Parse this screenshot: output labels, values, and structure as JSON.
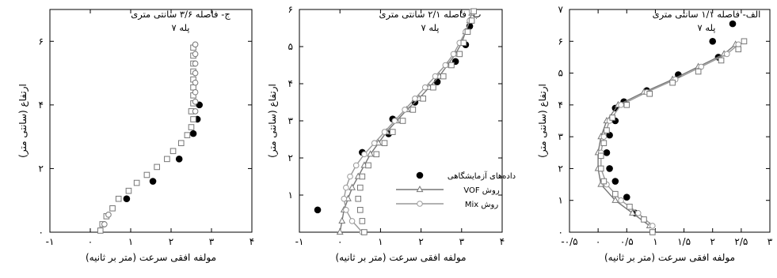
{
  "chart_data": [
    {
      "type": "scatter",
      "title": "ج- فاصله ۳/۶ سانتی متری",
      "subtitle": "پله ۷",
      "xlabel": "مولفه افقی سرعت (متر بر ثانیه)",
      "ylabel": "ارتفاع (سانتی متر)",
      "xlim": [
        -1,
        4
      ],
      "ylim": [
        0,
        7
      ],
      "xticks": [
        -1,
        0,
        1,
        2,
        3,
        4
      ],
      "xtick_labels": [
        "-۱",
        "۰",
        "۱",
        "۲",
        "۳",
        "۴"
      ],
      "yticks": [
        0,
        2,
        4,
        6
      ],
      "ytick_labels": [
        "۰",
        "۲",
        "۴",
        "۶"
      ],
      "series": [
        {
          "marker": "filled-circle",
          "points": [
            [
              0.9,
              1.05
            ],
            [
              1.55,
              1.6
            ],
            [
              2.2,
              2.3
            ],
            [
              2.55,
              3.1
            ],
            [
              2.65,
              3.55
            ],
            [
              2.7,
              4.0
            ]
          ]
        },
        {
          "marker": "open-square",
          "points": [
            [
              0.25,
              0.05
            ],
            [
              0.3,
              0.25
            ],
            [
              0.4,
              0.5
            ],
            [
              0.55,
              0.75
            ],
            [
              0.7,
              1.05
            ],
            [
              0.95,
              1.3
            ],
            [
              1.15,
              1.55
            ],
            [
              1.4,
              1.8
            ],
            [
              1.65,
              2.05
            ],
            [
              1.9,
              2.3
            ],
            [
              2.05,
              2.55
            ],
            [
              2.25,
              2.8
            ],
            [
              2.4,
              3.05
            ],
            [
              2.5,
              3.3
            ],
            [
              2.55,
              3.55
            ],
            [
              2.5,
              3.8
            ],
            [
              2.55,
              4.05
            ],
            [
              2.55,
              4.3
            ],
            [
              2.55,
              4.55
            ],
            [
              2.55,
              4.8
            ],
            [
              2.55,
              5.05
            ],
            [
              2.55,
              5.3
            ],
            [
              2.55,
              5.55
            ],
            [
              2.55,
              5.8
            ]
          ]
        },
        {
          "marker": "open-circle",
          "points": [
            [
              0.35,
              0.25
            ],
            [
              0.45,
              0.55
            ],
            [
              2.6,
              3.8
            ],
            [
              2.6,
              4.1
            ],
            [
              2.6,
              4.4
            ],
            [
              2.6,
              4.7
            ],
            [
              2.6,
              5.0
            ],
            [
              2.6,
              5.3
            ],
            [
              2.6,
              5.6
            ],
            [
              2.6,
              5.9
            ]
          ]
        }
      ]
    },
    {
      "type": "line",
      "title": "ب- فاصله ۲/۱ سانتی متری",
      "subtitle": "پله ۷",
      "xlabel": "مولفه افقی سرعت (متر بر ثانیه)",
      "ylabel": "ارتفاع (سانتی متر)",
      "xlim": [
        -1,
        4
      ],
      "ylim": [
        0,
        6
      ],
      "xticks": [
        -1,
        0,
        1,
        2,
        3,
        4
      ],
      "xtick_labels": [
        "-۱",
        "۰",
        "۱",
        "۲",
        "۳",
        "۴"
      ],
      "yticks": [
        1,
        2,
        3,
        4,
        5,
        6
      ],
      "ytick_labels": [
        "۱",
        "۲",
        "۳",
        "۴",
        "۵",
        "۶"
      ],
      "legend": {
        "position": "lower-right",
        "entries": [
          {
            "label": "داده‌های آزمایشگاهی",
            "marker": "filled-circle"
          },
          {
            "label": "روش VOF",
            "marker": "open-triangle",
            "line": true
          },
          {
            "label": "روش Mix",
            "marker": "open-circle",
            "line": true
          }
        ]
      },
      "series": [
        {
          "marker": "filled-circle",
          "points": [
            [
              -0.55,
              0.6
            ],
            [
              0.55,
              2.15
            ],
            [
              1.2,
              2.65
            ],
            [
              1.3,
              3.05
            ],
            [
              1.85,
              3.5
            ],
            [
              2.4,
              4.05
            ],
            [
              2.85,
              4.6
            ],
            [
              3.1,
              5.05
            ],
            [
              3.2,
              5.55
            ]
          ]
        },
        {
          "marker": "open-triangle",
          "line": true,
          "color": "#777777",
          "points": [
            [
              0.0,
              0.0
            ],
            [
              0.05,
              0.3
            ],
            [
              0.1,
              0.6
            ],
            [
              0.2,
              0.9
            ],
            [
              0.3,
              1.2
            ],
            [
              0.45,
              1.5
            ],
            [
              0.6,
              1.8
            ],
            [
              0.75,
              2.1
            ],
            [
              0.95,
              2.4
            ],
            [
              1.15,
              2.7
            ],
            [
              1.4,
              3.0
            ],
            [
              1.65,
              3.3
            ],
            [
              1.95,
              3.6
            ],
            [
              2.2,
              3.9
            ],
            [
              2.45,
              4.2
            ],
            [
              2.65,
              4.5
            ],
            [
              2.85,
              4.8
            ],
            [
              3.0,
              5.1
            ],
            [
              3.1,
              5.4
            ],
            [
              3.2,
              5.7
            ],
            [
              3.25,
              5.9
            ]
          ]
        },
        {
          "marker": "open-circle",
          "line": true,
          "color": "#999999",
          "points": [
            [
              0.55,
              0.0
            ],
            [
              0.3,
              0.3
            ],
            [
              0.15,
              0.6
            ],
            [
              0.1,
              0.9
            ],
            [
              0.15,
              1.2
            ],
            [
              0.25,
              1.5
            ],
            [
              0.4,
              1.8
            ],
            [
              0.6,
              2.1
            ],
            [
              0.85,
              2.4
            ],
            [
              1.1,
              2.7
            ],
            [
              1.35,
              3.0
            ],
            [
              1.6,
              3.3
            ],
            [
              1.85,
              3.6
            ],
            [
              2.1,
              3.9
            ],
            [
              2.35,
              4.2
            ],
            [
              2.6,
              4.5
            ],
            [
              2.8,
              4.8
            ],
            [
              2.95,
              5.1
            ],
            [
              3.1,
              5.4
            ],
            [
              3.2,
              5.7
            ],
            [
              3.25,
              5.95
            ]
          ]
        },
        {
          "marker": "open-square",
          "points": [
            [
              0.6,
              0.0
            ],
            [
              0.55,
              0.3
            ],
            [
              0.5,
              0.6
            ],
            [
              0.45,
              0.9
            ],
            [
              0.5,
              1.2
            ],
            [
              0.55,
              1.5
            ],
            [
              0.7,
              1.8
            ],
            [
              0.9,
              2.1
            ],
            [
              1.1,
              2.4
            ],
            [
              1.3,
              2.7
            ],
            [
              1.55,
              3.0
            ],
            [
              1.8,
              3.3
            ],
            [
              2.05,
              3.6
            ],
            [
              2.3,
              3.9
            ],
            [
              2.55,
              4.2
            ],
            [
              2.75,
              4.5
            ],
            [
              2.95,
              4.8
            ],
            [
              3.05,
              5.1
            ],
            [
              3.15,
              5.4
            ],
            [
              3.25,
              5.7
            ],
            [
              3.3,
              5.95
            ]
          ]
        }
      ]
    },
    {
      "type": "line",
      "title": "الف- فاصله ۱/۱ سانتی متری",
      "subtitle": "پله ۷",
      "xlabel": "مولفه افقی سرعت (متر بر ثانیه)",
      "ylabel": "ارتفاع (سانتی متر)",
      "xlim": [
        -0.5,
        3
      ],
      "ylim": [
        0,
        7
      ],
      "xticks": [
        -0.5,
        0,
        0.5,
        1,
        1.5,
        2,
        2.5,
        3
      ],
      "xtick_labels": [
        "-۰/۵",
        "۰",
        "۰/۵",
        "۱",
        "۱/۵",
        "۲",
        "۲/۵",
        "۳"
      ],
      "yticks": [
        0,
        1,
        2,
        3,
        4,
        5,
        6,
        7
      ],
      "ytick_labels": [
        "۰",
        "۱",
        "۲",
        "۳",
        "۴",
        "۵",
        "۶",
        "۷"
      ],
      "series": [
        {
          "marker": "filled-circle",
          "points": [
            [
              0.65,
              0.6
            ],
            [
              0.5,
              1.1
            ],
            [
              0.3,
              1.6
            ],
            [
              0.2,
              2.0
            ],
            [
              0.15,
              2.5
            ],
            [
              0.2,
              3.05
            ],
            [
              0.3,
              3.5
            ],
            [
              0.3,
              3.9
            ],
            [
              0.45,
              4.1
            ],
            [
              0.85,
              4.45
            ],
            [
              1.4,
              4.95
            ],
            [
              2.1,
              5.5
            ],
            [
              2.0,
              6.0
            ],
            [
              2.35,
              6.55
            ]
          ]
        },
        {
          "marker": "open-triangle",
          "line": true,
          "color": "#777777",
          "points": [
            [
              0.9,
              0.2
            ],
            [
              0.6,
              0.6
            ],
            [
              0.3,
              1.0
            ],
            [
              0.05,
              1.5
            ],
            [
              0.0,
              2.0
            ],
            [
              0.0,
              2.5
            ],
            [
              0.05,
              3.0
            ],
            [
              0.15,
              3.5
            ],
            [
              0.35,
              4.0
            ],
            [
              0.8,
              4.4
            ],
            [
              1.3,
              4.8
            ],
            [
              1.75,
              5.2
            ],
            [
              2.2,
              5.6
            ],
            [
              2.4,
              5.9
            ]
          ]
        },
        {
          "marker": "open-circle",
          "line": true,
          "color": "#999999",
          "points": [
            [
              0.95,
              0.2
            ],
            [
              0.7,
              0.6
            ],
            [
              0.4,
              1.0
            ],
            [
              0.15,
              1.5
            ],
            [
              0.05,
              2.0
            ],
            [
              0.05,
              2.5
            ],
            [
              0.1,
              3.0
            ],
            [
              0.2,
              3.5
            ],
            [
              0.4,
              4.0
            ],
            [
              0.85,
              4.4
            ],
            [
              1.35,
              4.8
            ],
            [
              1.8,
              5.2
            ],
            [
              2.25,
              5.6
            ],
            [
              2.45,
              5.9
            ]
          ]
        },
        {
          "marker": "open-square",
          "points": [
            [
              0.95,
              0.0
            ],
            [
              0.8,
              0.4
            ],
            [
              0.55,
              0.8
            ],
            [
              0.3,
              1.2
            ],
            [
              0.1,
              1.6
            ],
            [
              0.05,
              2.0
            ],
            [
              0.05,
              2.4
            ],
            [
              0.1,
              2.8
            ],
            [
              0.15,
              3.2
            ],
            [
              0.25,
              3.6
            ],
            [
              0.5,
              4.0
            ],
            [
              0.9,
              4.35
            ],
            [
              1.3,
              4.7
            ],
            [
              1.75,
              5.05
            ],
            [
              2.15,
              5.4
            ],
            [
              2.45,
              5.75
            ],
            [
              2.55,
              6.0
            ]
          ]
        }
      ]
    }
  ]
}
